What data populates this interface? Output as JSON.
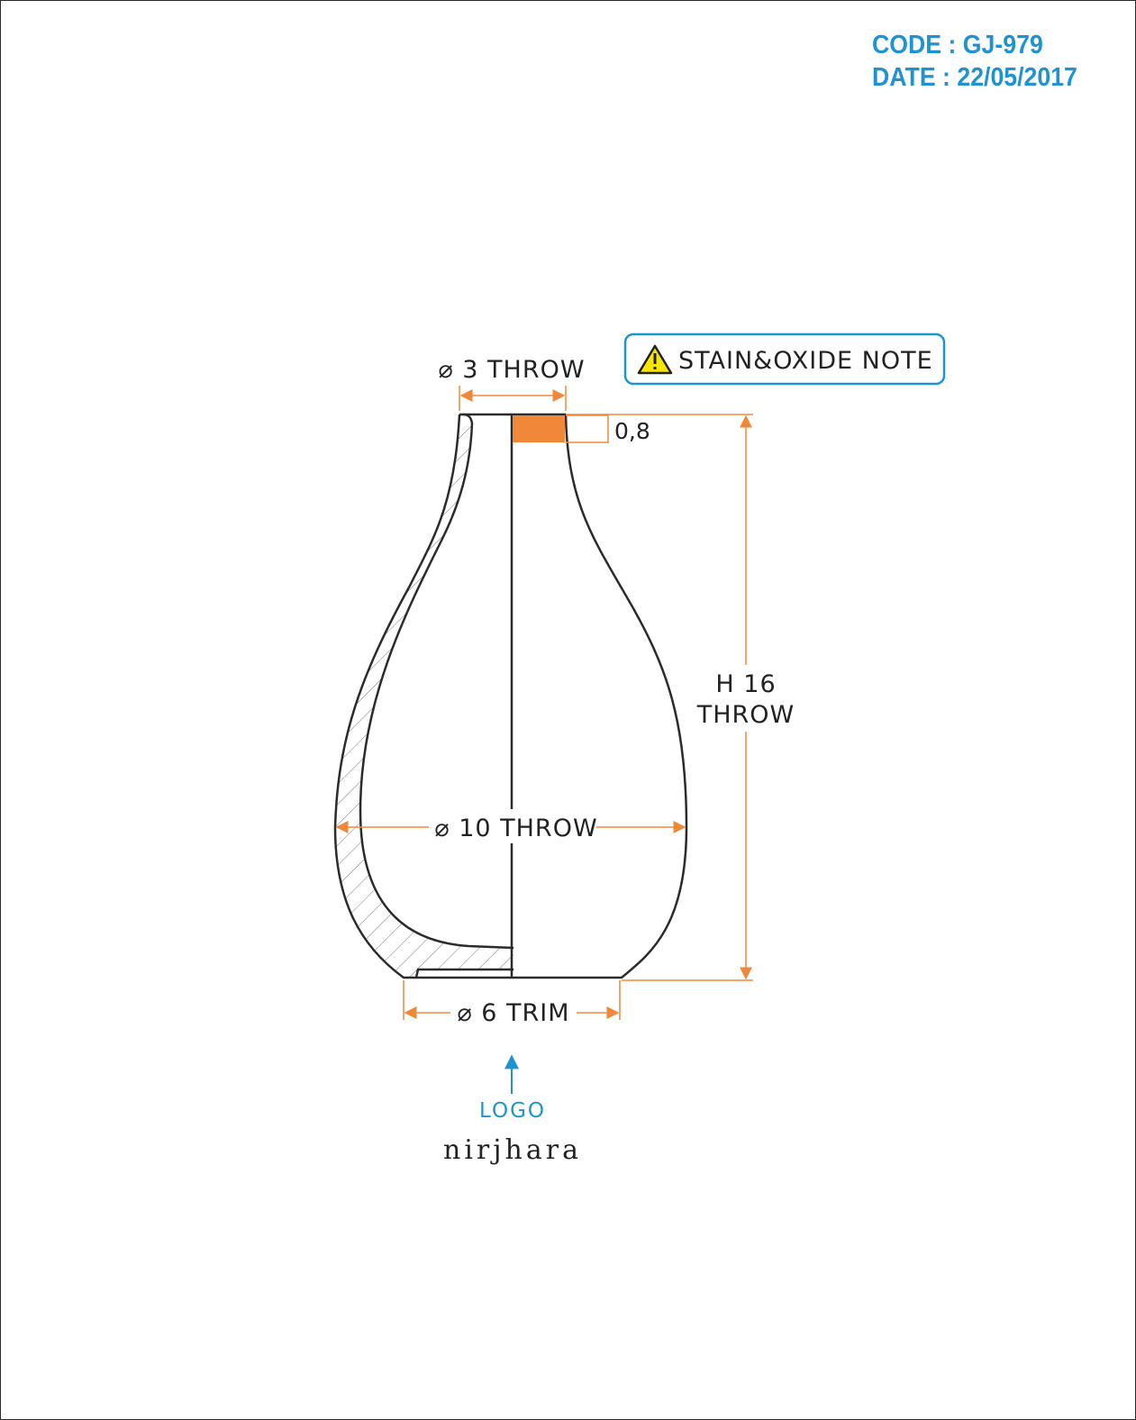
{
  "header": {
    "code": "CODE : GJ-979",
    "date": "DATE : 22/05/2017"
  },
  "note": {
    "label": "STAIN&OXIDE NOTE",
    "icon": "warning-icon",
    "border_color": "#1f93d2"
  },
  "dimensions": {
    "top_diameter": "⌀ 3 THROW",
    "rim_thickness": "0,8",
    "height_line1": "H 16",
    "height_line2": "THROW",
    "body_diameter": "⌀ 10 THROW",
    "base_diameter": "⌀ 6 TRIM"
  },
  "logo": {
    "label": "LOGO",
    "brand": "nirjhara"
  },
  "colors": {
    "dimension": "#f0883a",
    "accent": "#1f93d2",
    "outline": "#2b2b2b",
    "rim_fill": "#f0883a"
  }
}
